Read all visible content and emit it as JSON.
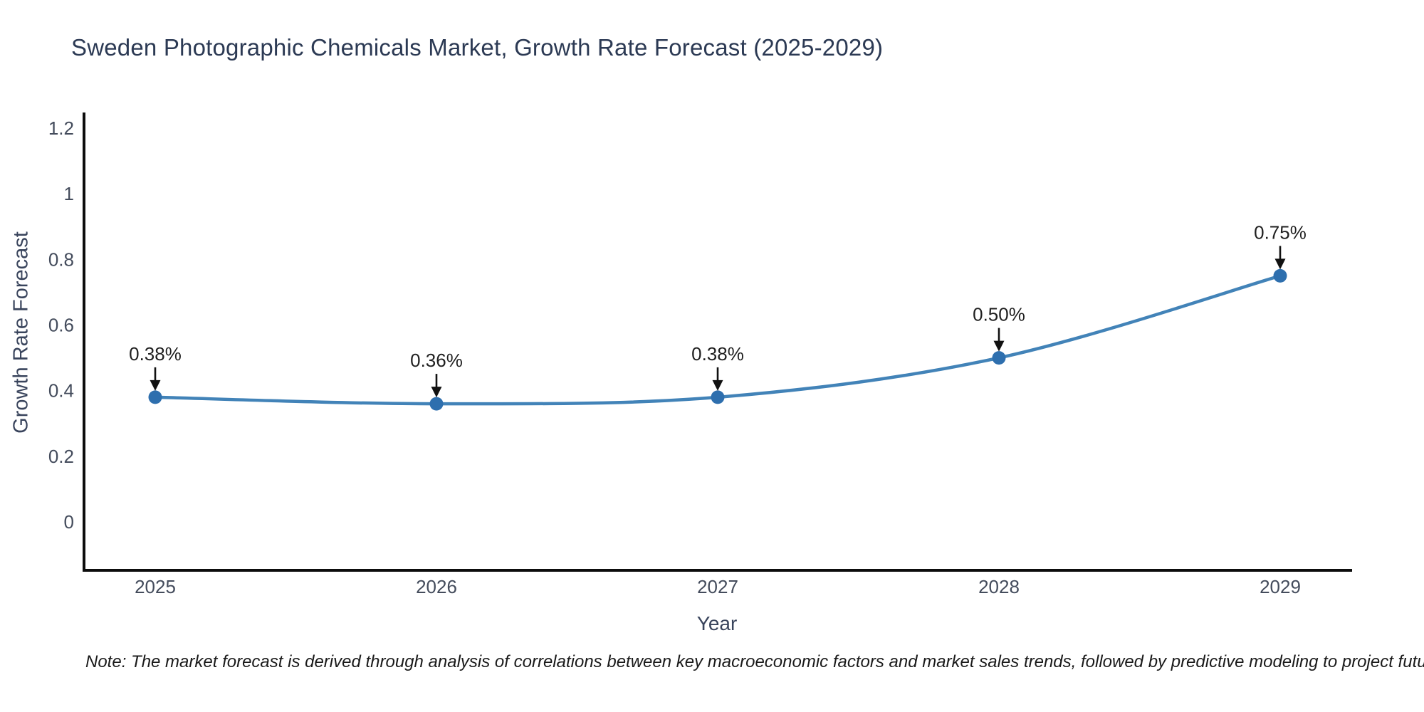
{
  "chart_data": {
    "type": "line",
    "title": "Sweden Photographic Chemicals Market, Growth Rate Forecast (2025-2029)",
    "xlabel": "Year",
    "ylabel": "Growth Rate Forecast",
    "categories": [
      "2025",
      "2026",
      "2027",
      "2028",
      "2029"
    ],
    "values": [
      0.38,
      0.36,
      0.38,
      0.5,
      0.75
    ],
    "point_labels": [
      "0.38%",
      "0.36%",
      "0.38%",
      "0.50%",
      "0.75%"
    ],
    "series_name": "Growth Rate Forecast",
    "ytick_values": [
      0,
      0.2,
      0.4,
      0.6,
      0.8,
      1,
      1.2
    ],
    "ytick_labels": [
      "0",
      "0.2",
      "0.4",
      "0.6",
      "0.8",
      "1",
      "1.2"
    ],
    "ylim": [
      -0.15,
      1.25
    ],
    "grid": false,
    "legend": "none",
    "annotation_style": "percent value above each point with downward black arrow"
  },
  "footnote": "Note: The market forecast is derived through analysis of correlations between key macroeconomic factors and market sales trends, followed by predictive modeling to project future sales",
  "colors": {
    "background": "#ffffff",
    "line": "#4283b8",
    "marker": "#2e6fae",
    "annotation_text": "#1f1f1f",
    "arrow": "#111111",
    "spine": "#0d0d0d",
    "title_text": "#2c3a54",
    "axis_label_text": "#39445c",
    "tick_text": "#444c5c",
    "note_text": "#1a1a1a"
  }
}
